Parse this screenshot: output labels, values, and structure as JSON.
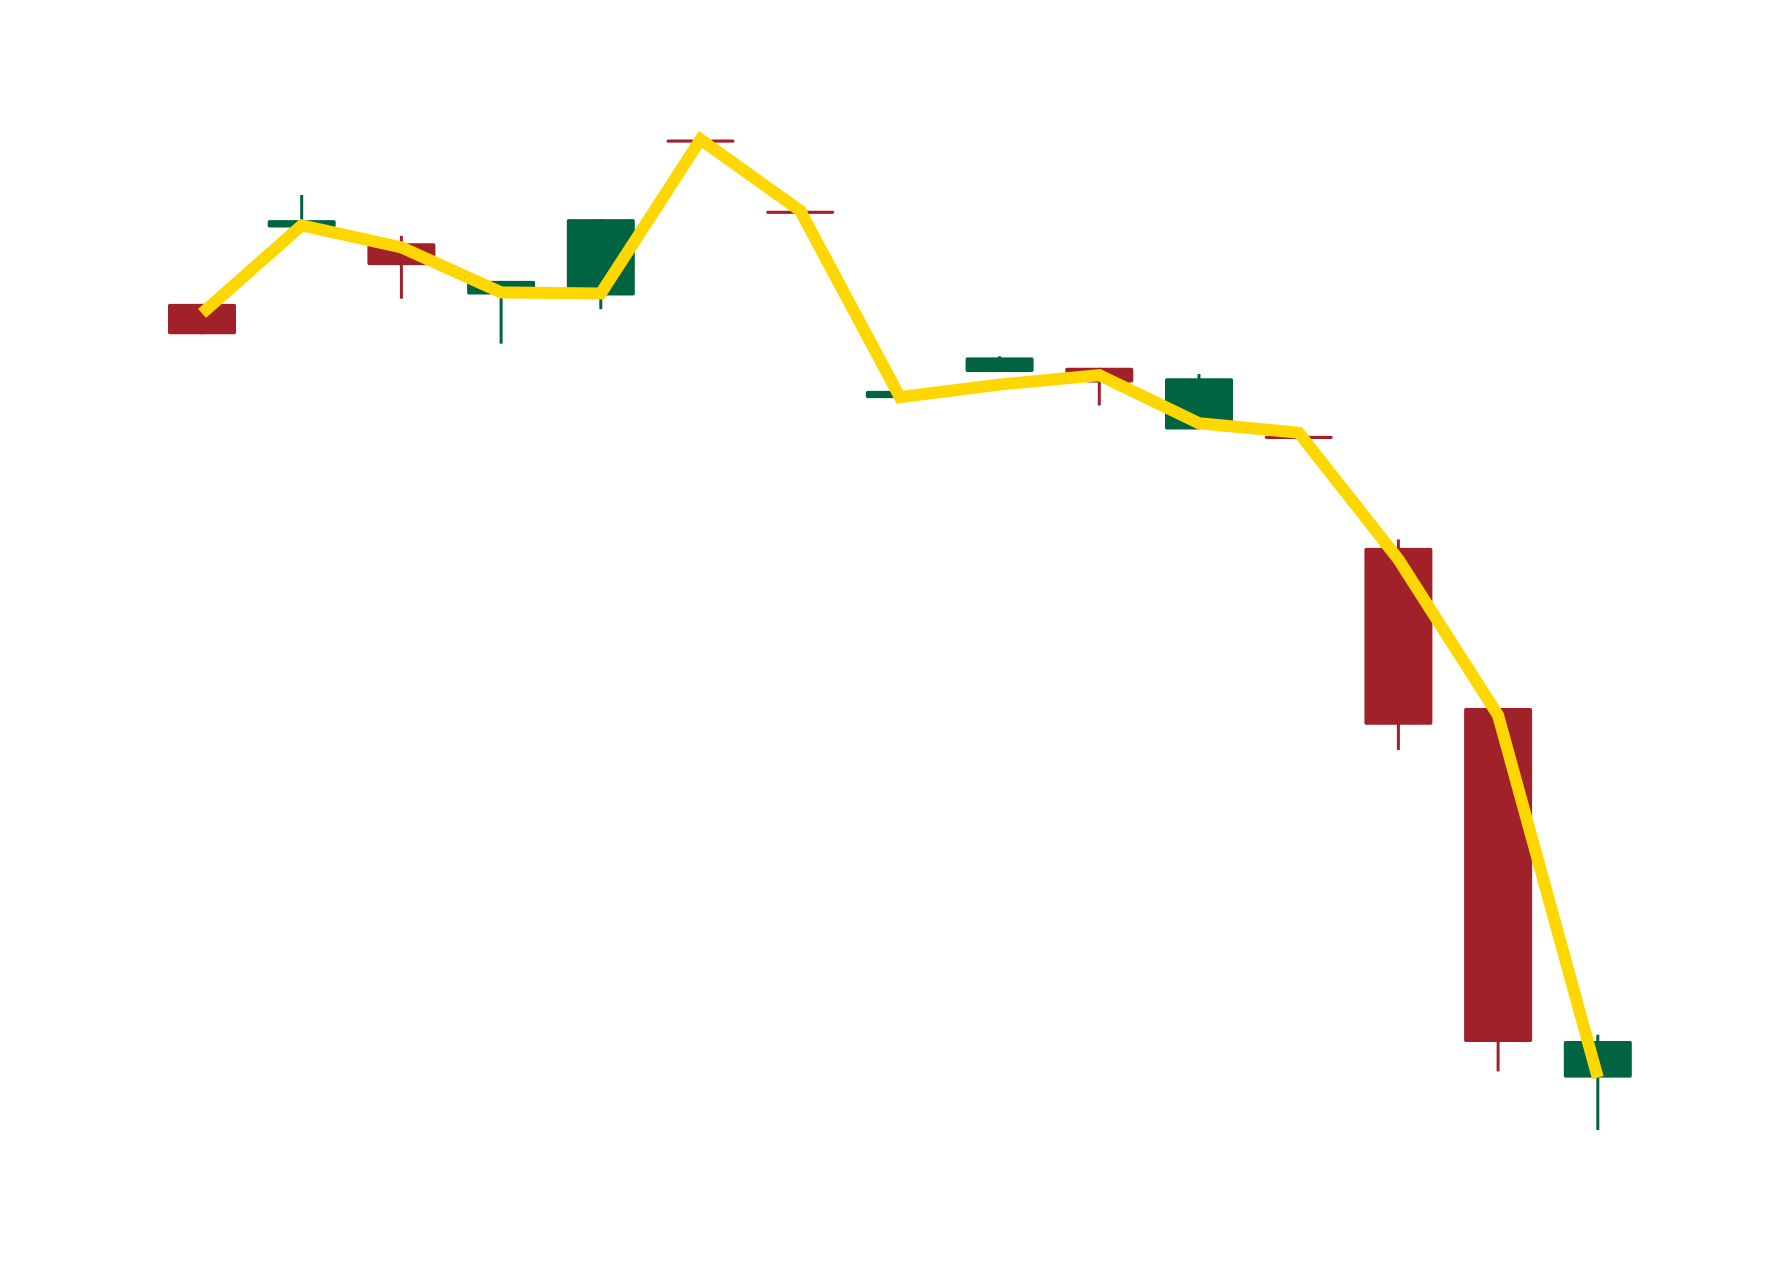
{
  "chart_data": {
    "type": "candlestick",
    "title": "",
    "xlabel": "",
    "ylabel": "",
    "axes_visible": false,
    "grid": false,
    "ylim": [
      0,
      100
    ],
    "up_color": "#006442",
    "down_color": "#a0212a",
    "line_color": "#ffd700",
    "candles": [
      {
        "open": 78.9,
        "high": 78.9,
        "low": 76.0,
        "close": 76.0
      },
      {
        "open": 86.2,
        "high": 89.3,
        "low": 86.2,
        "close": 86.9
      },
      {
        "open": 84.7,
        "high": 85.4,
        "low": 79.4,
        "close": 82.6
      },
      {
        "open": 79.8,
        "high": 81.1,
        "low": 75.1,
        "close": 81.1
      },
      {
        "open": 79.7,
        "high": 87.0,
        "low": 78.4,
        "close": 87.0
      },
      {
        "open": 94.6,
        "high": 94.6,
        "low": 94.3,
        "close": 94.3
      },
      {
        "open": 87.8,
        "high": 87.8,
        "low": 87.5,
        "close": 87.5
      },
      {
        "open": 69.9,
        "high": 70.6,
        "low": 69.9,
        "close": 70.6
      },
      {
        "open": 72.4,
        "high": 73.9,
        "low": 72.4,
        "close": 73.8
      },
      {
        "open": 72.8,
        "high": 72.8,
        "low": 69.2,
        "close": 71.4
      },
      {
        "open": 66.9,
        "high": 72.2,
        "low": 66.9,
        "close": 71.8
      },
      {
        "open": 66.3,
        "high": 66.3,
        "low": 66.0,
        "close": 66.0
      },
      {
        "open": 55.6,
        "high": 56.4,
        "low": 36.3,
        "close": 38.7
      },
      {
        "open": 40.3,
        "high": 40.3,
        "low": 5.6,
        "close": 8.4
      },
      {
        "open": 5.0,
        "high": 9.1,
        "low": 0.0,
        "close": 8.5
      }
    ],
    "line_values": [
      78.0,
      86.4,
      84.3,
      80.0,
      79.9,
      94.6,
      87.8,
      70.0,
      71.2,
      72.1,
      67.5,
      66.6,
      54.5,
      39.6,
      5.0
    ]
  }
}
